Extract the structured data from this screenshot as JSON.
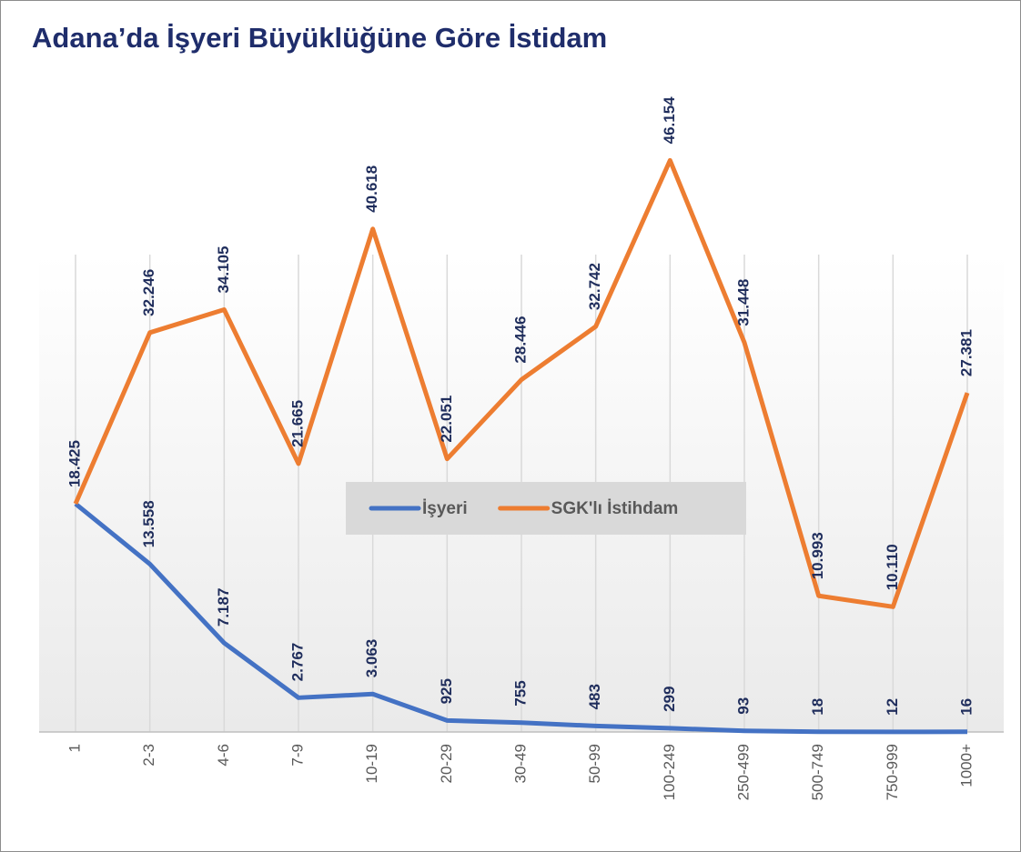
{
  "chart_data": {
    "type": "line",
    "title": "Adana’da İşyeri Büyüklüğüne Göre İstidam",
    "categories": [
      "1",
      "2-3",
      "4-6",
      "7-9",
      "10-19",
      "20-29",
      "30-49",
      "50-99",
      "100-249",
      "250-499",
      "500-749",
      "750-999",
      "1000+"
    ],
    "series": [
      {
        "name": "İşyeri",
        "color": "#4472c4",
        "values": [
          18425,
          13558,
          7187,
          2767,
          3063,
          925,
          755,
          483,
          299,
          93,
          18,
          12,
          16
        ],
        "value_labels": [
          "18.425",
          "13.558",
          "7.187",
          "2.767",
          "3.063",
          "925",
          "755",
          "483",
          "299",
          "93",
          "18",
          "12",
          "16"
        ]
      },
      {
        "name": "SGK'lı İstihdam",
        "color": "#ed7d31",
        "values": [
          18425,
          32246,
          34105,
          21665,
          40618,
          22051,
          28446,
          32742,
          46154,
          31448,
          10993,
          10110,
          27381
        ],
        "value_labels": [
          null,
          "32.246",
          "34.105",
          "21.665",
          "40.618",
          "22.051",
          "28.446",
          "32.742",
          "46.154",
          "31.448",
          "10.993",
          "10.110",
          "27.381"
        ]
      }
    ],
    "ylim": [
      0,
      50000
    ],
    "grid": "x",
    "legend": "center"
  }
}
